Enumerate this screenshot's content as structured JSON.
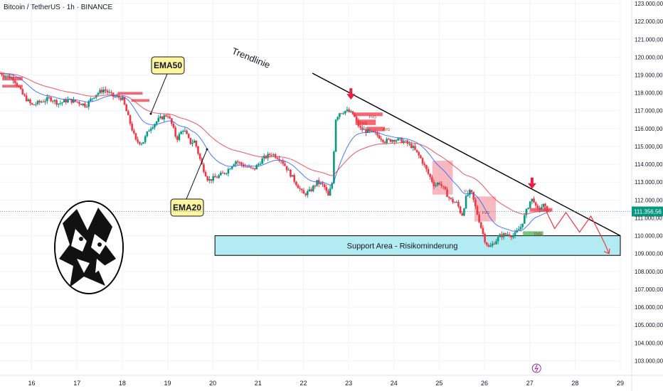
{
  "title": "Bitcoin / TetherUS · 1h · BINANCE",
  "chart_data": {
    "type": "candlestick",
    "symbol": "Bitcoin / TetherUS",
    "interval": "1h",
    "exchange": "BINANCE",
    "y_axis": {
      "ylim": [
        102500,
        123200
      ],
      "tick_labels": [
        "123.000,00",
        "122.000,00",
        "121.000,00",
        "120.000,00",
        "119.000,00",
        "118.000,00",
        "117.000,00",
        "116.000,00",
        "115.000,00",
        "114.000,00",
        "113.000,00",
        "112.000,00",
        "111.000,00",
        "110.000,00",
        "109.000,00",
        "108.000,00",
        "107.000,00",
        "106.000,00",
        "105.000,00",
        "104.000,00",
        "103.000,00"
      ],
      "tick_values": [
        123000,
        122000,
        121000,
        120000,
        119000,
        118000,
        117000,
        116000,
        115000,
        114000,
        113000,
        112000,
        111000,
        110000,
        109000,
        108000,
        107000,
        106000,
        105000,
        104000,
        103000
      ]
    },
    "x_axis": {
      "tick_labels": [
        "16",
        "17",
        "18",
        "19",
        "20",
        "21",
        "22",
        "23",
        "24",
        "25",
        "26",
        "27",
        "28",
        "29"
      ],
      "xlim_days": [
        15.3,
        29.0
      ]
    },
    "current_price": {
      "value": 111356.56,
      "label": "111.356,56",
      "color": "#089981"
    },
    "close_path": [
      [
        15.3,
        119100
      ],
      [
        15.6,
        118800
      ],
      [
        15.8,
        117900
      ],
      [
        16.0,
        117300
      ],
      [
        16.2,
        117500
      ],
      [
        16.4,
        117700
      ],
      [
        16.6,
        117400
      ],
      [
        16.8,
        117600
      ],
      [
        17.0,
        117500
      ],
      [
        17.2,
        117300
      ],
      [
        17.4,
        117900
      ],
      [
        17.6,
        118200
      ],
      [
        17.8,
        117800
      ],
      [
        18.0,
        117700
      ],
      [
        18.15,
        116500
      ],
      [
        18.3,
        115300
      ],
      [
        18.45,
        115200
      ],
      [
        18.6,
        116000
      ],
      [
        18.8,
        116500
      ],
      [
        19.0,
        116800
      ],
      [
        19.1,
        116200
      ],
      [
        19.2,
        115400
      ],
      [
        19.35,
        116000
      ],
      [
        19.5,
        115200
      ],
      [
        19.6,
        115300
      ],
      [
        19.75,
        114000
      ],
      [
        19.9,
        113100
      ],
      [
        20.1,
        113300
      ],
      [
        20.3,
        113600
      ],
      [
        20.5,
        114200
      ],
      [
        20.7,
        113900
      ],
      [
        20.9,
        113700
      ],
      [
        21.1,
        114300
      ],
      [
        21.3,
        114600
      ],
      [
        21.5,
        114300
      ],
      [
        21.7,
        113500
      ],
      [
        21.9,
        112700
      ],
      [
        22.0,
        112300
      ],
      [
        22.15,
        112500
      ],
      [
        22.3,
        113000
      ],
      [
        22.45,
        112800
      ],
      [
        22.55,
        112200
      ],
      [
        22.65,
        113100
      ],
      [
        22.7,
        116500
      ],
      [
        22.8,
        116900
      ],
      [
        22.95,
        117000
      ],
      [
        23.1,
        116800
      ],
      [
        23.25,
        116000
      ],
      [
        23.45,
        115800
      ],
      [
        23.6,
        115700
      ],
      [
        23.8,
        115300
      ],
      [
        24.0,
        115400
      ],
      [
        24.2,
        115300
      ],
      [
        24.4,
        115000
      ],
      [
        24.6,
        114300
      ],
      [
        24.75,
        113500
      ],
      [
        24.9,
        112800
      ],
      [
        25.0,
        113000
      ],
      [
        25.1,
        112600
      ],
      [
        25.25,
        112000
      ],
      [
        25.4,
        111800
      ],
      [
        25.5,
        111100
      ],
      [
        25.6,
        112200
      ],
      [
        25.7,
        112500
      ],
      [
        25.8,
        111600
      ],
      [
        25.9,
        110700
      ],
      [
        26.0,
        109800
      ],
      [
        26.1,
        109300
      ],
      [
        26.2,
        109600
      ],
      [
        26.35,
        110000
      ],
      [
        26.5,
        110100
      ],
      [
        26.65,
        110000
      ],
      [
        26.8,
        110500
      ],
      [
        26.9,
        111200
      ],
      [
        27.0,
        111900
      ],
      [
        27.08,
        112100
      ],
      [
        27.15,
        111400
      ],
      [
        27.3,
        111700
      ],
      [
        27.4,
        111356
      ]
    ],
    "series": [
      {
        "name": "EMA20",
        "color": "#2962ff"
      },
      {
        "name": "EMA50",
        "color": "#f23645"
      }
    ],
    "annotations": [
      {
        "text": "EMA50",
        "type": "callout"
      },
      {
        "text": "EMA20",
        "type": "callout"
      },
      {
        "text": "Trendlinie",
        "type": "rotated-label",
        "line_from": [
          22.2,
          119100
        ],
        "line_to": [
          29.0,
          110000
        ]
      },
      {
        "text": "Support Area - Risikominderung",
        "type": "zone",
        "x_range": [
          20.0,
          29.0
        ],
        "y_range": [
          108900,
          110000
        ],
        "color": "#b2ebf2"
      },
      {
        "text": "FVG",
        "type": "box-label"
      }
    ],
    "fvg_zones": [
      {
        "x_range": [
          23.1,
          23.75
        ],
        "y_range": [
          116700,
          116900
        ],
        "color": "#f23645"
      },
      {
        "x_range": [
          23.15,
          23.6
        ],
        "y_range": [
          116200,
          116500
        ],
        "color": "#f23645"
      },
      {
        "x_range": [
          23.4,
          23.8
        ],
        "y_range": [
          115850,
          116100
        ],
        "color": "#f23645"
      },
      {
        "x_range": [
          24.85,
          25.3
        ],
        "y_range": [
          112300,
          114200
        ],
        "color": "#f4a1aa"
      },
      {
        "x_range": [
          25.78,
          26.25
        ],
        "y_range": [
          110800,
          112200
        ],
        "color": "#f4a1aa"
      },
      {
        "x_range": [
          27.0,
          27.5
        ],
        "y_range": [
          111350,
          111550
        ],
        "color": "#f23645"
      },
      {
        "x_range": [
          26.85,
          27.3
        ],
        "y_range": [
          110000,
          110250
        ],
        "color": "#4caf50"
      },
      {
        "x_range": [
          15.35,
          15.8
        ],
        "y_range": [
          118700,
          118900
        ],
        "color": "#f23645"
      },
      {
        "x_range": [
          15.35,
          15.8
        ],
        "y_range": [
          118300,
          118450
        ],
        "color": "#f23645"
      },
      {
        "x_range": [
          17.9,
          18.45
        ],
        "y_range": [
          117900,
          118050
        ],
        "color": "#f23645"
      },
      {
        "x_range": [
          18.2,
          18.6
        ],
        "y_range": [
          117500,
          117650
        ],
        "color": "#f23645"
      }
    ],
    "arrows": [
      {
        "type": "down-marker",
        "x": 23.05,
        "y": 117700,
        "color": "#e91e43"
      },
      {
        "type": "down-marker",
        "x": 27.05,
        "y": 112700,
        "color": "#e91e43"
      }
    ],
    "projection": {
      "color": "#f23645",
      "path": [
        [
          27.3,
          111700
        ],
        [
          27.55,
          110400
        ],
        [
          27.8,
          111300
        ],
        [
          28.1,
          110200
        ],
        [
          28.35,
          111100
        ],
        [
          28.65,
          109600
        ],
        [
          28.75,
          109000
        ]
      ]
    }
  }
}
